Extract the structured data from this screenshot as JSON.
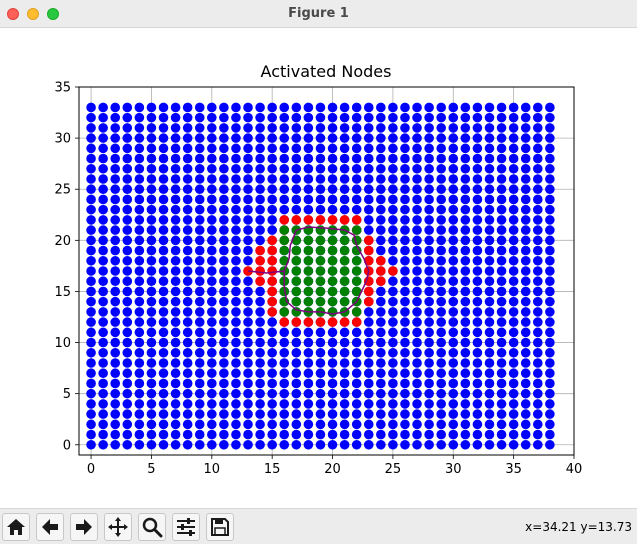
{
  "window": {
    "title": "Figure 1"
  },
  "toolbar": {
    "buttons": [
      {
        "name": "home-button",
        "icon": "home-icon"
      },
      {
        "name": "back-button",
        "icon": "arrow-left-icon"
      },
      {
        "name": "forward-button",
        "icon": "arrow-right-icon"
      },
      {
        "name": "pan-button",
        "icon": "move-icon"
      },
      {
        "name": "zoom-button",
        "icon": "magnifier-icon"
      },
      {
        "name": "configure-subplots-button",
        "icon": "sliders-icon"
      },
      {
        "name": "save-button",
        "icon": "floppy-disk-icon"
      }
    ],
    "coordinates": "x=34.21 y=13.73"
  },
  "chart_data": {
    "type": "scatter",
    "title": "Activated Nodes",
    "xlabel": "",
    "ylabel": "",
    "xlim": [
      -1,
      40
    ],
    "ylim": [
      -1,
      35
    ],
    "xticks": [
      0,
      5,
      10,
      15,
      20,
      25,
      30,
      35,
      40
    ],
    "yticks": [
      0,
      5,
      10,
      15,
      20,
      25,
      30,
      35
    ],
    "grid": true,
    "colors": {
      "all_nodes": "#0000ff",
      "boundary_nodes": "#ff0000",
      "activated_nodes": "#008000",
      "path": "#7f007f"
    },
    "series": [
      {
        "name": "",
        "color": "#0000ff",
        "grid_x_range": [
          0,
          38
        ],
        "grid_y_range": [
          0,
          33
        ]
      },
      {
        "name": "",
        "color": "#ff0000",
        "points": [
          [
            16,
            22
          ],
          [
            17,
            22
          ],
          [
            18,
            22
          ],
          [
            19,
            22
          ],
          [
            20,
            22
          ],
          [
            21,
            22
          ],
          [
            22,
            22
          ],
          [
            16,
            21
          ],
          [
            22,
            21
          ],
          [
            15,
            20
          ],
          [
            16,
            20
          ],
          [
            22,
            20
          ],
          [
            23,
            20
          ],
          [
            14,
            19
          ],
          [
            15,
            19
          ],
          [
            23,
            19
          ],
          [
            14,
            18
          ],
          [
            15,
            18
          ],
          [
            23,
            18
          ],
          [
            24,
            18
          ],
          [
            13,
            17
          ],
          [
            14,
            17
          ],
          [
            15,
            17
          ],
          [
            23,
            17
          ],
          [
            24,
            17
          ],
          [
            25,
            17
          ],
          [
            14,
            16
          ],
          [
            15,
            16
          ],
          [
            23,
            16
          ],
          [
            24,
            16
          ],
          [
            15,
            15
          ],
          [
            23,
            15
          ],
          [
            15,
            14
          ],
          [
            23,
            14
          ],
          [
            15,
            13
          ],
          [
            16,
            13
          ],
          [
            22,
            13
          ],
          [
            16,
            12
          ],
          [
            17,
            12
          ],
          [
            18,
            12
          ],
          [
            19,
            12
          ],
          [
            20,
            12
          ],
          [
            21,
            12
          ],
          [
            22,
            12
          ]
        ]
      },
      {
        "name": "",
        "color": "#008000",
        "x_range": [
          16,
          22
        ],
        "y_range": [
          13,
          21
        ]
      },
      {
        "name": "",
        "color": "#7f007f",
        "points": [
          [
            13,
            17
          ],
          [
            14.5,
            16.8
          ],
          [
            16,
            17
          ],
          [
            16.4,
            18.2
          ],
          [
            16.5,
            19.5
          ],
          [
            17,
            21
          ],
          [
            18,
            21.3
          ],
          [
            19.5,
            21.2
          ],
          [
            21,
            21
          ],
          [
            21.8,
            20.5
          ],
          [
            22,
            19.5
          ],
          [
            22.6,
            18.2
          ],
          [
            23,
            17
          ],
          [
            22.8,
            16
          ],
          [
            22,
            14
          ],
          [
            21.5,
            13.5
          ],
          [
            21,
            13
          ],
          [
            20,
            12.8
          ],
          [
            19,
            13
          ],
          [
            18,
            13
          ],
          [
            17,
            13.2
          ],
          [
            16.2,
            14
          ],
          [
            16,
            15.5
          ],
          [
            16,
            17
          ]
        ]
      }
    ]
  }
}
